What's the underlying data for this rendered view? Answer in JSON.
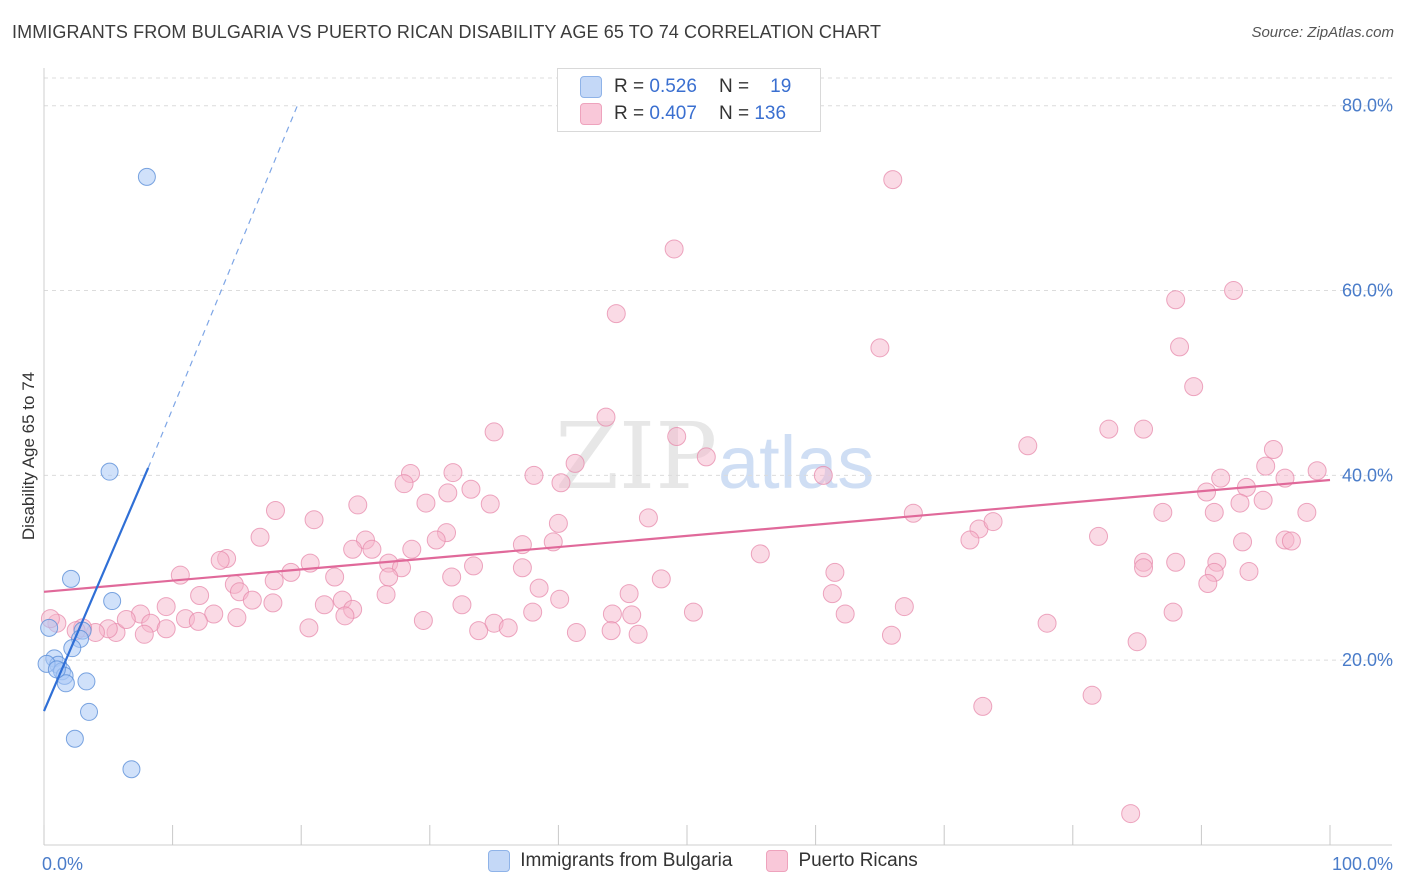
{
  "title": "IMMIGRANTS FROM BULGARIA VS PUERTO RICAN DISABILITY AGE 65 TO 74 CORRELATION CHART",
  "source": "Source: ZipAtlas.com",
  "watermark": {
    "zip": "ZIP",
    "atlas": "atlas"
  },
  "colors": {
    "blue_fill": "#aac8f5",
    "blue_stroke": "#5b8fd8",
    "blue_line": "#2f6fd6",
    "pink_fill": "#f6b5cc",
    "pink_stroke": "#e78aab",
    "pink_line": "#e0699a",
    "tick": "#4a7cc9"
  },
  "legend_top": {
    "rows": [
      {
        "r_label": "R =",
        "r_value": "0.526",
        "n_label": "N =",
        "n_value": "19"
      },
      {
        "r_label": "R =",
        "r_value": "0.407",
        "n_label": "N =",
        "n_value": "136"
      }
    ]
  },
  "legend_bottom": {
    "series": [
      "Immigrants from Bulgaria",
      "Puerto Ricans"
    ]
  },
  "chart_data": {
    "type": "scatter",
    "ylabel": "Disability Age 65 to 74",
    "xlim": [
      0,
      100
    ],
    "ylim": [
      0,
      83
    ],
    "x_tick_labels": [
      {
        "value": 0,
        "label": "0.0%"
      },
      {
        "value": 100,
        "label": "100.0%"
      }
    ],
    "y_tick_labels": [
      {
        "value": 20,
        "label": "20.0%"
      },
      {
        "value": 40,
        "label": "40.0%"
      },
      {
        "value": 60,
        "label": "60.0%"
      },
      {
        "value": 80,
        "label": "80.0%"
      }
    ],
    "grid": "horizontal dashed",
    "series": [
      {
        "name": "Immigrants from Bulgaria",
        "color": "blue",
        "trend": {
          "x0": 0,
          "y0": 14.5,
          "x1": 8.1,
          "y1": 40.8,
          "dash_to_x": 19.7,
          "dash_to_y": 80
        },
        "points": [
          [
            8.0,
            72.3
          ],
          [
            5.1,
            40.4
          ],
          [
            2.1,
            28.8
          ],
          [
            5.3,
            26.4
          ],
          [
            3.0,
            23.2
          ],
          [
            2.8,
            22.3
          ],
          [
            0.4,
            23.5
          ],
          [
            2.2,
            21.3
          ],
          [
            0.8,
            20.2
          ],
          [
            1.1,
            19.5
          ],
          [
            1.4,
            18.8
          ],
          [
            1.6,
            18.3
          ],
          [
            1.7,
            17.5
          ],
          [
            3.3,
            17.7
          ],
          [
            3.5,
            14.4
          ],
          [
            2.4,
            11.5
          ],
          [
            6.8,
            8.2
          ],
          [
            0.2,
            19.6
          ],
          [
            1.0,
            19.0
          ]
        ]
      },
      {
        "name": "Puerto Ricans",
        "color": "pink",
        "trend": {
          "x0": 0,
          "y0": 27.4,
          "x1": 100,
          "y1": 39.5
        },
        "points": [
          [
            66.0,
            72.0
          ],
          [
            49.0,
            64.5
          ],
          [
            44.5,
            57.5
          ],
          [
            88.0,
            59.0
          ],
          [
            92.5,
            60.0
          ],
          [
            65.0,
            53.8
          ],
          [
            88.3,
            53.9
          ],
          [
            89.4,
            49.6
          ],
          [
            43.7,
            46.3
          ],
          [
            35.0,
            44.7
          ],
          [
            82.8,
            45.0
          ],
          [
            85.5,
            45.0
          ],
          [
            49.2,
            44.2
          ],
          [
            76.5,
            43.2
          ],
          [
            51.5,
            42.0
          ],
          [
            41.3,
            41.3
          ],
          [
            95.6,
            42.8
          ],
          [
            31.8,
            40.3
          ],
          [
            95.0,
            41.0
          ],
          [
            99.0,
            40.5
          ],
          [
            28.5,
            40.2
          ],
          [
            38.1,
            40.0
          ],
          [
            60.6,
            40.0
          ],
          [
            28.0,
            39.1
          ],
          [
            40.2,
            39.2
          ],
          [
            33.2,
            38.5
          ],
          [
            91.5,
            39.7
          ],
          [
            93.5,
            38.7
          ],
          [
            96.5,
            39.7
          ],
          [
            31.4,
            38.1
          ],
          [
            24.4,
            36.8
          ],
          [
            29.7,
            37.0
          ],
          [
            34.7,
            36.9
          ],
          [
            90.4,
            38.2
          ],
          [
            93.0,
            37.0
          ],
          [
            94.8,
            37.3
          ],
          [
            18.0,
            36.2
          ],
          [
            67.6,
            35.9
          ],
          [
            87.0,
            36.0
          ],
          [
            47.0,
            35.4
          ],
          [
            91.0,
            36.0
          ],
          [
            98.2,
            36.0
          ],
          [
            40.0,
            34.8
          ],
          [
            21.0,
            35.2
          ],
          [
            16.8,
            33.3
          ],
          [
            25.0,
            33.0
          ],
          [
            31.3,
            33.8
          ],
          [
            72.7,
            34.2
          ],
          [
            73.8,
            35.0
          ],
          [
            82.0,
            33.4
          ],
          [
            96.5,
            33.0
          ],
          [
            24.0,
            32.0
          ],
          [
            25.5,
            32.0
          ],
          [
            37.2,
            32.5
          ],
          [
            30.5,
            33.0
          ],
          [
            39.6,
            32.8
          ],
          [
            28.6,
            32.0
          ],
          [
            72.0,
            33.0
          ],
          [
            93.2,
            32.8
          ],
          [
            97.0,
            32.9
          ],
          [
            14.2,
            31.0
          ],
          [
            20.7,
            30.5
          ],
          [
            26.8,
            30.5
          ],
          [
            27.8,
            30.0
          ],
          [
            33.4,
            30.2
          ],
          [
            55.7,
            31.5
          ],
          [
            85.5,
            30.6
          ],
          [
            91.2,
            30.6
          ],
          [
            13.7,
            30.8
          ],
          [
            19.2,
            29.5
          ],
          [
            22.6,
            29.0
          ],
          [
            26.8,
            29.0
          ],
          [
            31.7,
            29.0
          ],
          [
            37.2,
            30.0
          ],
          [
            61.5,
            29.5
          ],
          [
            88.0,
            30.6
          ],
          [
            85.5,
            30.0
          ],
          [
            91.0,
            29.5
          ],
          [
            10.6,
            29.2
          ],
          [
            14.8,
            28.2
          ],
          [
            15.2,
            27.4
          ],
          [
            17.9,
            28.6
          ],
          [
            26.6,
            27.1
          ],
          [
            38.5,
            27.8
          ],
          [
            48.0,
            28.8
          ],
          [
            90.5,
            28.3
          ],
          [
            93.7,
            29.6
          ],
          [
            12.1,
            27.0
          ],
          [
            23.2,
            26.5
          ],
          [
            24.0,
            25.5
          ],
          [
            32.5,
            26.0
          ],
          [
            40.1,
            26.6
          ],
          [
            45.5,
            27.2
          ],
          [
            61.3,
            27.2
          ],
          [
            16.2,
            26.5
          ],
          [
            13.2,
            25.0
          ],
          [
            23.4,
            24.8
          ],
          [
            50.5,
            25.2
          ],
          [
            66.9,
            25.8
          ],
          [
            87.8,
            25.2
          ],
          [
            17.8,
            26.2
          ],
          [
            21.8,
            26.0
          ],
          [
            29.5,
            24.3
          ],
          [
            35.0,
            24.0
          ],
          [
            38.0,
            25.2
          ],
          [
            44.2,
            25.0
          ],
          [
            45.7,
            24.9
          ],
          [
            62.3,
            25.0
          ],
          [
            9.5,
            25.8
          ],
          [
            11.0,
            24.5
          ],
          [
            15.0,
            24.6
          ],
          [
            7.5,
            25.0
          ],
          [
            5.6,
            23.0
          ],
          [
            6.4,
            24.4
          ],
          [
            8.3,
            24.0
          ],
          [
            7.8,
            22.8
          ],
          [
            9.5,
            23.4
          ],
          [
            12.0,
            24.2
          ],
          [
            20.6,
            23.5
          ],
          [
            33.8,
            23.2
          ],
          [
            36.1,
            23.5
          ],
          [
            41.4,
            23.0
          ],
          [
            44.1,
            23.2
          ],
          [
            46.2,
            22.8
          ],
          [
            65.9,
            22.7
          ],
          [
            78.0,
            24.0
          ],
          [
            85.0,
            22.0
          ],
          [
            5.0,
            23.4
          ],
          [
            4.0,
            23.0
          ],
          [
            3.0,
            23.5
          ],
          [
            81.5,
            16.2
          ],
          [
            73.0,
            15.0
          ],
          [
            84.5,
            3.4
          ],
          [
            1.0,
            24.0
          ],
          [
            0.5,
            24.5
          ],
          [
            2.5,
            23.2
          ]
        ]
      }
    ]
  }
}
